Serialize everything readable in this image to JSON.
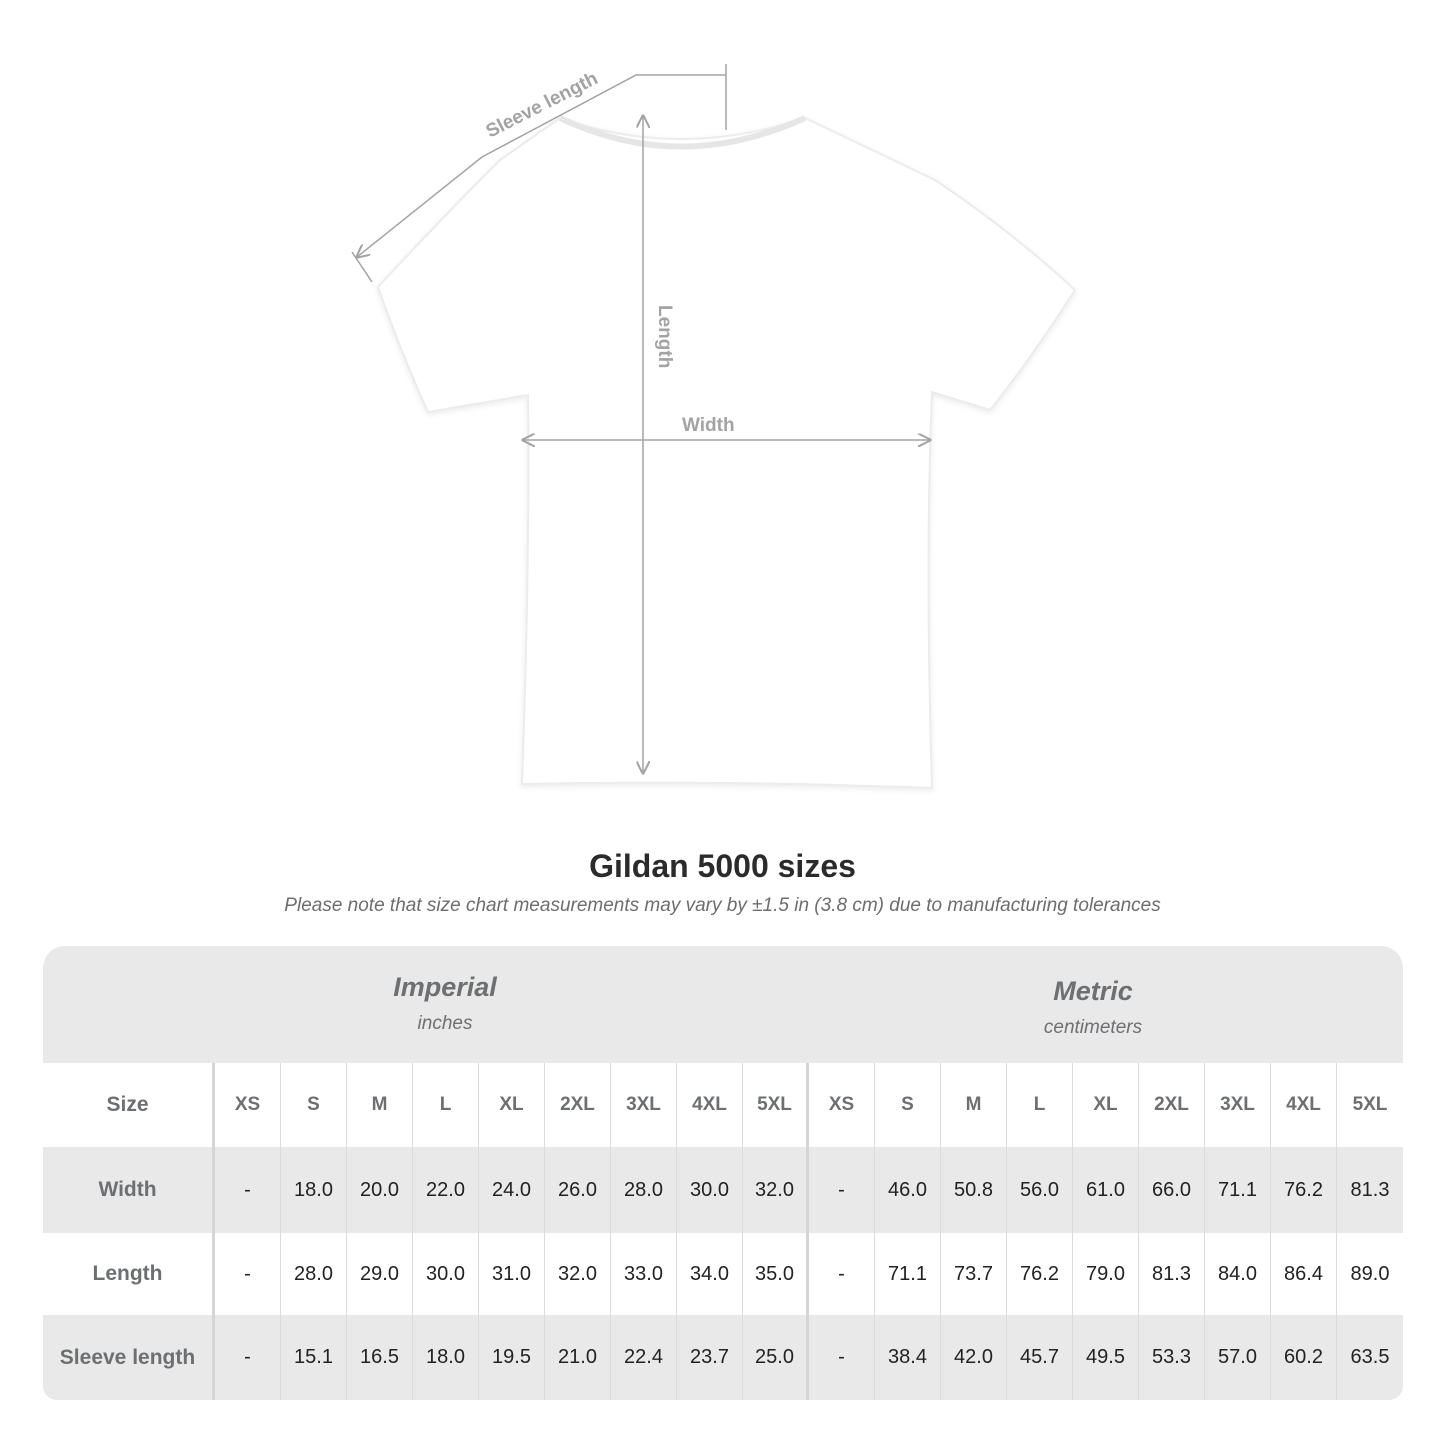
{
  "diagram": {
    "sleeve_label": "Sleeve length",
    "length_label": "Length",
    "width_label": "Width",
    "shirt_color": "#ffffff",
    "annotation_color": "#a3a3a3"
  },
  "title": "Gildan 5000 sizes",
  "subtitle": "Please note that size chart measurements may vary by ±1.5 in (3.8 cm) due to manufacturing tolerances",
  "table": {
    "imperial": {
      "name": "Imperial",
      "unit": "inches"
    },
    "metric": {
      "name": "Metric",
      "unit": "centimeters"
    },
    "size_label": "Size",
    "sizes": [
      "XS",
      "S",
      "M",
      "L",
      "XL",
      "2XL",
      "3XL",
      "4XL",
      "5XL"
    ],
    "rows": [
      {
        "label": "Width",
        "imperial": [
          "-",
          "18.0",
          "20.0",
          "22.0",
          "24.0",
          "26.0",
          "28.0",
          "30.0",
          "32.0"
        ],
        "metric": [
          "-",
          "46.0",
          "50.8",
          "56.0",
          "61.0",
          "66.0",
          "71.1",
          "76.2",
          "81.3"
        ]
      },
      {
        "label": "Length",
        "imperial": [
          "-",
          "28.0",
          "29.0",
          "30.0",
          "31.0",
          "32.0",
          "33.0",
          "34.0",
          "35.0"
        ],
        "metric": [
          "-",
          "71.1",
          "73.7",
          "76.2",
          "79.0",
          "81.3",
          "84.0",
          "86.4",
          "89.0"
        ]
      },
      {
        "label": "Sleeve length",
        "imperial": [
          "-",
          "15.1",
          "16.5",
          "18.0",
          "19.5",
          "21.0",
          "22.4",
          "23.7",
          "25.0"
        ],
        "metric": [
          "-",
          "38.4",
          "42.0",
          "45.7",
          "49.5",
          "53.3",
          "57.0",
          "60.2",
          "63.5"
        ]
      }
    ]
  }
}
